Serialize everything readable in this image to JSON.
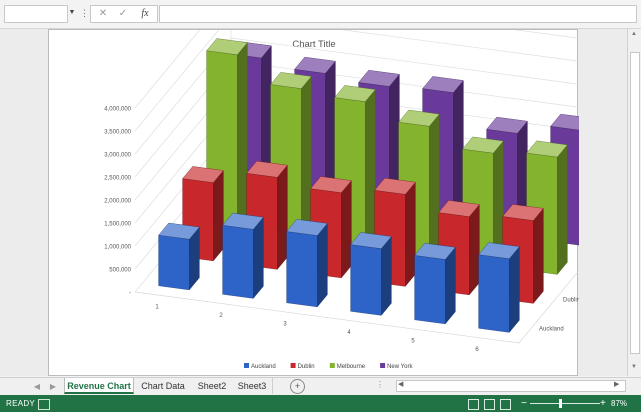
{
  "formula_bar": {
    "name_box_value": "",
    "cancel_icon": "cancel-x-icon",
    "enter_icon": "check-icon",
    "function_label": "fx",
    "formula_value": ""
  },
  "sheet_tabs": {
    "tabs": [
      "Revenue Chart",
      "Chart Data",
      "Sheet2",
      "Sheet3"
    ],
    "active_index": 0,
    "add_label": "+"
  },
  "status_bar": {
    "ready": "READY",
    "zoom_minus": "−",
    "zoom_plus": "+",
    "zoom_label": "87%",
    "zoom_level_percent": 87
  },
  "colors": {
    "excel_green": "#217346",
    "Auckland": "#2e64c8",
    "Dublin": "#c8282b",
    "Melbourne": "#84b42e",
    "New York": "#6a3a9b"
  },
  "chart_data": {
    "type": "bar",
    "subtype": "3d-column",
    "title": "Chart Title",
    "categories": [
      "1",
      "2",
      "3",
      "4",
      "5",
      "6"
    ],
    "series": [
      {
        "name": "Auckland",
        "values": [
          1100000,
          1500000,
          1550000,
          1450000,
          1400000,
          1600000
        ]
      },
      {
        "name": "Dublin",
        "values": [
          1700000,
          2000000,
          1850000,
          2000000,
          1700000,
          1800000
        ]
      },
      {
        "name": "Melbourne",
        "values": [
          3850000,
          3300000,
          3200000,
          2850000,
          2450000,
          2550000
        ]
      },
      {
        "name": "New York",
        "values": [
          3150000,
          3000000,
          2900000,
          2950000,
          2250000,
          2500000
        ]
      }
    ],
    "y_ticks": [
      "-",
      "500,000",
      "1,000,000",
      "1,500,000",
      "2,000,000",
      "2,500,000",
      "3,000,000",
      "3,500,000",
      "4,000,000"
    ],
    "ylim": [
      0,
      4000000
    ],
    "legend_position": "bottom",
    "grid": true
  }
}
